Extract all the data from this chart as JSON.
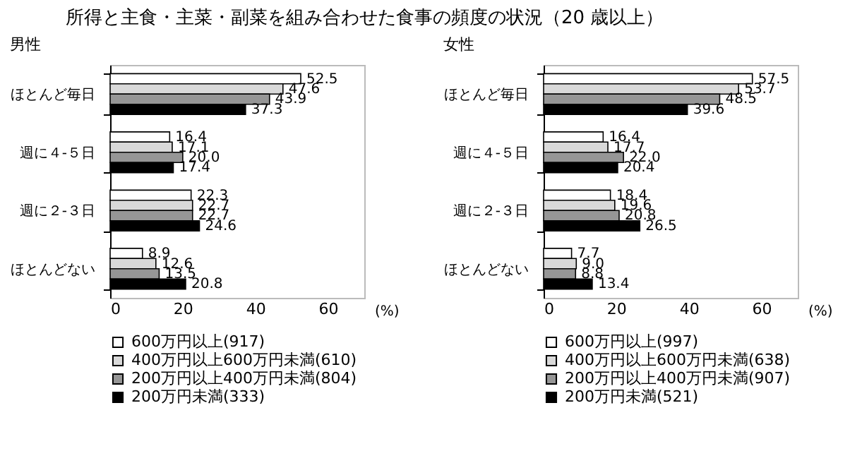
{
  "chart_data": [
    {
      "type": "bar",
      "title": "所得と主食・主菜・副菜を組み合わせた食事の頻度の状況（20 歳以上）",
      "subtitle": "男性",
      "orientation": "horizontal",
      "categories": [
        "ほとんど毎日",
        "週に４-５日",
        "週に２-３日",
        "ほとんどない"
      ],
      "xlabel": "(%)",
      "xlim": [
        0,
        70
      ],
      "xticks": [
        0,
        20,
        40,
        60
      ],
      "legend": "bottom",
      "grid": false,
      "series": [
        {
          "name": "600万円以上(917)",
          "color": "#ffffff",
          "values": [
            52.5,
            16.4,
            22.3,
            8.9
          ],
          "value_labels": [
            "52.5",
            "16.4",
            "22.3",
            "8.9"
          ]
        },
        {
          "name": "400万円以上600万円未満(610)",
          "color": "#d9d9d9",
          "values": [
            47.6,
            17.1,
            22.7,
            12.6
          ],
          "value_labels": [
            "47.6",
            "17.1",
            "22.7",
            "12.6"
          ]
        },
        {
          "name": "200万円以上400万円未満(804)",
          "color": "#969696",
          "values": [
            43.9,
            20.0,
            22.7,
            13.5
          ],
          "value_labels": [
            "43.9",
            "20.0",
            "22.7",
            "13.5"
          ]
        },
        {
          "name": "200万円未満(333)",
          "color": "#000000",
          "values": [
            37.3,
            17.4,
            24.6,
            20.8
          ],
          "value_labels": [
            "37.3",
            "17.4",
            "24.6",
            "20.8"
          ]
        }
      ]
    },
    {
      "type": "bar",
      "subtitle": "女性",
      "orientation": "horizontal",
      "categories": [
        "ほとんど毎日",
        "週に４-５日",
        "週に２-３日",
        "ほとんどない"
      ],
      "xlabel": "(%)",
      "xlim": [
        0,
        70
      ],
      "xticks": [
        0,
        20,
        40,
        60
      ],
      "legend": "bottom",
      "grid": false,
      "series": [
        {
          "name": "600万円以上(997)",
          "color": "#ffffff",
          "values": [
            57.5,
            16.4,
            18.4,
            7.7
          ],
          "value_labels": [
            "57.5",
            "16.4",
            "18.4",
            "7.7"
          ]
        },
        {
          "name": "400万円以上600万円未満(638)",
          "color": "#d9d9d9",
          "values": [
            53.7,
            17.7,
            19.6,
            9.0
          ],
          "value_labels": [
            "53.7",
            "17.7",
            "19.6",
            "9.0"
          ]
        },
        {
          "name": "200万円以上400万円未満(907)",
          "color": "#969696",
          "values": [
            48.5,
            22.0,
            20.8,
            8.8
          ],
          "value_labels": [
            "48.5",
            "22.0",
            "20.8",
            "8.8"
          ]
        },
        {
          "name": "200万円未満(521)",
          "color": "#000000",
          "values": [
            39.6,
            20.4,
            26.5,
            13.4
          ],
          "value_labels": [
            "39.6",
            "20.4",
            "26.5",
            "13.4"
          ]
        }
      ]
    }
  ]
}
